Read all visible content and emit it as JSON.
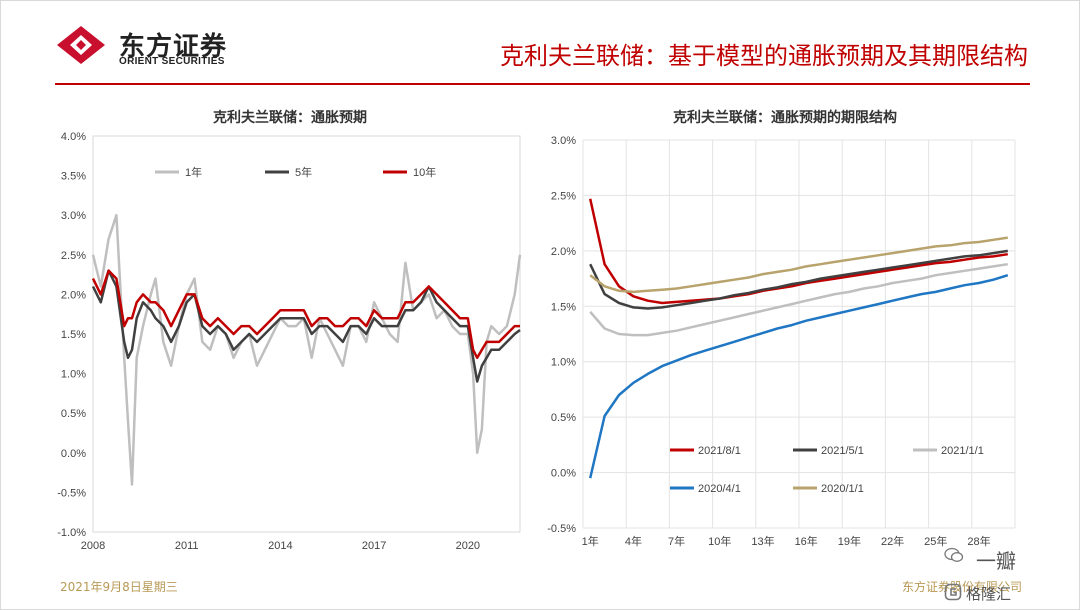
{
  "header": {
    "logo_cn": "东方证券",
    "logo_en": "ORIENT SECURITIES",
    "title": "克利夫兰联储：基于模型的通胀预期及其期限结构"
  },
  "footer": {
    "date": "2021年9月8日星期三",
    "company": "东方证券股份有限公司"
  },
  "watermark": {
    "text1": "一瓣",
    "text2": "格隆汇"
  },
  "colors": {
    "brand_red": "#c00000",
    "gold": "#b89955"
  },
  "chart_data": [
    {
      "type": "line",
      "title": "克利夫兰联储：通胀预期",
      "xlabel": "",
      "ylabel": "",
      "ylim": [
        -0.01,
        0.04
      ],
      "yticks": [
        "4.0%",
        "3.5%",
        "3.0%",
        "2.5%",
        "2.0%",
        "1.5%",
        "1.0%",
        "0.5%",
        "0.0%",
        "-0.5%",
        "-1.0%"
      ],
      "ytick_values": [
        0.04,
        0.035,
        0.03,
        0.025,
        0.02,
        0.015,
        0.01,
        0.005,
        0.0,
        -0.005,
        -0.01
      ],
      "xlim": [
        2008.0,
        2021.67
      ],
      "xticks": [
        "2008",
        "2011",
        "2014",
        "2017",
        "2020"
      ],
      "xtick_values": [
        2008,
        2011,
        2014,
        2017,
        2020
      ],
      "legend_position": "top",
      "grid": false,
      "x": [
        2008.0,
        2008.25,
        2008.5,
        2008.75,
        2009.0,
        2009.12,
        2009.25,
        2009.4,
        2009.6,
        2009.85,
        2010.0,
        2010.25,
        2010.5,
        2010.75,
        2011.0,
        2011.25,
        2011.5,
        2011.75,
        2012.0,
        2012.25,
        2012.5,
        2012.75,
        2013.0,
        2013.25,
        2013.5,
        2013.75,
        2014.0,
        2014.25,
        2014.5,
        2014.75,
        2015.0,
        2015.25,
        2015.5,
        2015.75,
        2016.0,
        2016.25,
        2016.5,
        2016.75,
        2017.0,
        2017.25,
        2017.5,
        2017.75,
        2018.0,
        2018.25,
        2018.5,
        2018.75,
        2019.0,
        2019.25,
        2019.5,
        2019.75,
        2020.0,
        2020.17,
        2020.3,
        2020.45,
        2020.6,
        2020.75,
        2021.0,
        2021.25,
        2021.5,
        2021.67
      ],
      "series": [
        {
          "name": "1年",
          "color": "#bfbfbf",
          "values": [
            0.025,
            0.021,
            0.027,
            0.03,
            0.012,
            0.004,
            -0.004,
            0.012,
            0.016,
            0.02,
            0.022,
            0.014,
            0.011,
            0.016,
            0.02,
            0.022,
            0.014,
            0.013,
            0.016,
            0.015,
            0.012,
            0.014,
            0.015,
            0.011,
            0.013,
            0.015,
            0.017,
            0.016,
            0.016,
            0.017,
            0.012,
            0.017,
            0.015,
            0.013,
            0.011,
            0.016,
            0.016,
            0.014,
            0.019,
            0.017,
            0.015,
            0.014,
            0.024,
            0.018,
            0.019,
            0.02,
            0.017,
            0.018,
            0.016,
            0.015,
            0.015,
            0.01,
            0.0,
            0.003,
            0.014,
            0.016,
            0.015,
            0.016,
            0.02,
            0.025
          ]
        },
        {
          "name": "5年",
          "color": "#404040",
          "values": [
            0.021,
            0.019,
            0.023,
            0.021,
            0.014,
            0.012,
            0.013,
            0.017,
            0.019,
            0.018,
            0.017,
            0.016,
            0.014,
            0.016,
            0.019,
            0.02,
            0.016,
            0.015,
            0.016,
            0.015,
            0.013,
            0.014,
            0.015,
            0.014,
            0.015,
            0.016,
            0.017,
            0.017,
            0.017,
            0.017,
            0.015,
            0.016,
            0.016,
            0.015,
            0.014,
            0.016,
            0.016,
            0.015,
            0.017,
            0.016,
            0.016,
            0.016,
            0.018,
            0.018,
            0.019,
            0.021,
            0.019,
            0.018,
            0.017,
            0.016,
            0.016,
            0.012,
            0.009,
            0.011,
            0.012,
            0.013,
            0.013,
            0.014,
            0.015,
            0.0155
          ]
        },
        {
          "name": "10年",
          "color": "#c00000",
          "values": [
            0.022,
            0.02,
            0.023,
            0.022,
            0.016,
            0.017,
            0.017,
            0.019,
            0.02,
            0.019,
            0.019,
            0.018,
            0.016,
            0.018,
            0.02,
            0.02,
            0.017,
            0.016,
            0.017,
            0.016,
            0.015,
            0.016,
            0.016,
            0.015,
            0.016,
            0.017,
            0.018,
            0.018,
            0.018,
            0.018,
            0.016,
            0.017,
            0.017,
            0.016,
            0.016,
            0.017,
            0.017,
            0.016,
            0.018,
            0.017,
            0.017,
            0.017,
            0.019,
            0.019,
            0.02,
            0.021,
            0.02,
            0.019,
            0.018,
            0.017,
            0.017,
            0.013,
            0.012,
            0.013,
            0.014,
            0.014,
            0.014,
            0.015,
            0.016,
            0.016
          ]
        }
      ]
    },
    {
      "type": "line",
      "title": "克利夫兰联储：通胀预期的期限结构",
      "xlabel": "",
      "ylabel": "",
      "ylim": [
        -0.005,
        0.03
      ],
      "yticks": [
        "3.0%",
        "2.5%",
        "2.0%",
        "1.5%",
        "1.0%",
        "0.5%",
        "0.0%",
        "-0.5%"
      ],
      "ytick_values": [
        0.03,
        0.025,
        0.02,
        0.015,
        0.01,
        0.005,
        0.0,
        -0.005
      ],
      "xlim": [
        0.5,
        30.5
      ],
      "xticks": [
        "1年",
        "4年",
        "7年",
        "10年",
        "13年",
        "16年",
        "19年",
        "22年",
        "25年",
        "28年"
      ],
      "xtick_values": [
        1,
        4,
        7,
        10,
        13,
        16,
        19,
        22,
        25,
        28
      ],
      "legend_position": "bottom",
      "grid": true,
      "x": [
        1,
        2,
        3,
        4,
        5,
        6,
        7,
        8,
        9,
        10,
        11,
        12,
        13,
        14,
        15,
        16,
        17,
        18,
        19,
        20,
        21,
        22,
        23,
        24,
        25,
        26,
        27,
        28,
        29,
        30
      ],
      "series": [
        {
          "name": "2021/8/1",
          "color": "#c00000",
          "values": [
            0.0247,
            0.0188,
            0.0168,
            0.0159,
            0.0155,
            0.0153,
            0.0154,
            0.0155,
            0.0156,
            0.0157,
            0.0159,
            0.0161,
            0.0164,
            0.0166,
            0.0168,
            0.0171,
            0.0173,
            0.0175,
            0.0177,
            0.0179,
            0.0181,
            0.0183,
            0.0185,
            0.0187,
            0.0189,
            0.019,
            0.0192,
            0.0194,
            0.0195,
            0.0197
          ]
        },
        {
          "name": "2021/5/1",
          "color": "#404040",
          "values": [
            0.0188,
            0.0161,
            0.0153,
            0.0149,
            0.0148,
            0.0149,
            0.0151,
            0.0153,
            0.0155,
            0.0157,
            0.016,
            0.0162,
            0.0165,
            0.0167,
            0.017,
            0.0172,
            0.0175,
            0.0177,
            0.0179,
            0.0181,
            0.0183,
            0.0185,
            0.0187,
            0.0189,
            0.0191,
            0.0193,
            0.0195,
            0.0196,
            0.0198,
            0.02
          ]
        },
        {
          "name": "2021/1/1",
          "color": "#bfbfbf",
          "values": [
            0.0145,
            0.013,
            0.0125,
            0.0124,
            0.0124,
            0.0126,
            0.0128,
            0.0131,
            0.0134,
            0.0137,
            0.014,
            0.0143,
            0.0146,
            0.0149,
            0.0152,
            0.0155,
            0.0158,
            0.0161,
            0.0163,
            0.0166,
            0.0168,
            0.0171,
            0.0173,
            0.0175,
            0.0178,
            0.018,
            0.0182,
            0.0184,
            0.0186,
            0.0188
          ]
        },
        {
          "name": "2020/4/1",
          "color": "#1f77c4",
          "values": [
            -0.0005,
            0.0051,
            0.007,
            0.0081,
            0.0089,
            0.0096,
            0.0101,
            0.0106,
            0.011,
            0.0114,
            0.0118,
            0.0122,
            0.0126,
            0.013,
            0.0133,
            0.0137,
            0.014,
            0.0143,
            0.0146,
            0.0149,
            0.0152,
            0.0155,
            0.0158,
            0.0161,
            0.0163,
            0.0166,
            0.0169,
            0.0171,
            0.0174,
            0.0178
          ]
        },
        {
          "name": "2020/1/1",
          "color": "#b8a36d",
          "values": [
            0.0178,
            0.0168,
            0.0164,
            0.0163,
            0.0164,
            0.0165,
            0.0166,
            0.0168,
            0.017,
            0.0172,
            0.0174,
            0.0176,
            0.0179,
            0.0181,
            0.0183,
            0.0186,
            0.0188,
            0.019,
            0.0192,
            0.0194,
            0.0196,
            0.0198,
            0.02,
            0.0202,
            0.0204,
            0.0205,
            0.0207,
            0.0208,
            0.021,
            0.0212
          ]
        }
      ]
    }
  ]
}
